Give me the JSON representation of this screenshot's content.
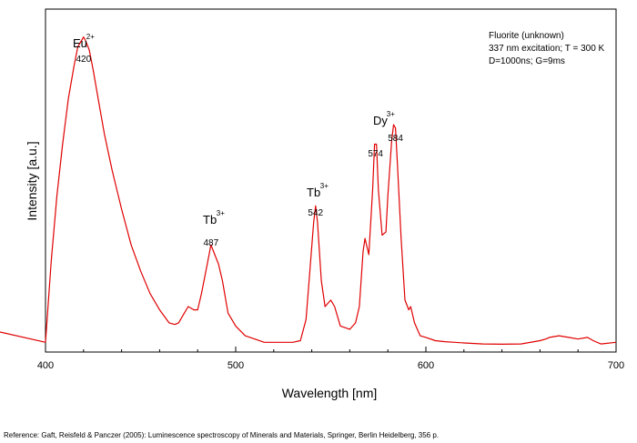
{
  "chart_data": {
    "type": "line",
    "xlabel": "Wavelength [nm]",
    "ylabel": "Intensity [a.u.]",
    "xlim": [
      400,
      700
    ],
    "ylim": [
      0,
      100
    ],
    "x_ticks": [
      400,
      500,
      600,
      700
    ],
    "y_ticks_labeled": false,
    "grid": false,
    "legend": "none",
    "series_color": "#e00000",
    "info_lines": [
      "Fluorite (unknown)",
      "337 nm excitation; T = 300 K",
      "D=1000ns; G=9ms"
    ],
    "ion_labels": [
      {
        "ion": "Eu",
        "charge": "2+",
        "at_x": 420
      },
      {
        "ion": "Tb",
        "charge": "3+",
        "at_x": 487
      },
      {
        "ion": "Tb",
        "charge": "3+",
        "at_x": 542
      },
      {
        "ion": "Dy",
        "charge": "3+",
        "at_x": 579
      }
    ],
    "peak_labels": [
      {
        "text": "420",
        "x": 420
      },
      {
        "text": "487",
        "x": 487
      },
      {
        "text": "542",
        "x": 542
      },
      {
        "text": "574",
        "x": 574
      },
      {
        "text": "584",
        "x": 584
      }
    ],
    "series": [
      {
        "x": [
          400,
          403,
          406,
          409,
          412,
          415,
          417,
          419,
          420,
          421,
          423,
          425,
          428,
          431,
          435,
          440,
          445,
          450,
          455,
          460,
          465,
          468,
          470,
          472,
          475,
          478,
          480,
          482,
          485,
          487,
          489,
          491,
          493,
          496,
          500,
          505,
          510,
          515,
          520,
          525,
          530,
          534,
          537,
          539,
          541,
          542,
          543,
          545,
          547,
          550,
          552,
          555,
          560,
          563,
          565,
          567,
          568,
          570,
          572,
          573,
          574,
          575,
          577,
          579,
          580,
          582,
          583,
          584,
          585,
          587,
          589,
          591,
          592,
          594,
          597,
          600,
          605,
          610,
          615,
          620,
          630,
          640,
          650,
          660,
          663,
          665,
          670,
          675,
          680,
          685,
          688,
          692,
          700
        ],
        "y": [
          3,
          28,
          48,
          64,
          78,
          88,
          94,
          96,
          97,
          96,
          93,
          87,
          77,
          67,
          56,
          44,
          33,
          25,
          18,
          13,
          9,
          8.5,
          9,
          11,
          14,
          13,
          13,
          18,
          27,
          33,
          30,
          27,
          22,
          12,
          8,
          5,
          4,
          3,
          3,
          3,
          3,
          3.5,
          10,
          25,
          40,
          45,
          40,
          22,
          14,
          16,
          14,
          8,
          7,
          9,
          14,
          31,
          35,
          30,
          50,
          64,
          64,
          50,
          36,
          37,
          48,
          65,
          70,
          69,
          58,
          35,
          16,
          13,
          14,
          9,
          5,
          4.5,
          3.5,
          3.2,
          3,
          2.8,
          2.5,
          2.4,
          2.5,
          3.5,
          4,
          4.5,
          5,
          4.5,
          4,
          4.5,
          3.5,
          2.5,
          3
        ]
      }
    ]
  },
  "reference": "Reference: Gaft, Reisfeld & Panczer (2005): Luminescence spectroscopy of Minerals and Materials, Springer, Berlin Heidelberg, 356 p."
}
